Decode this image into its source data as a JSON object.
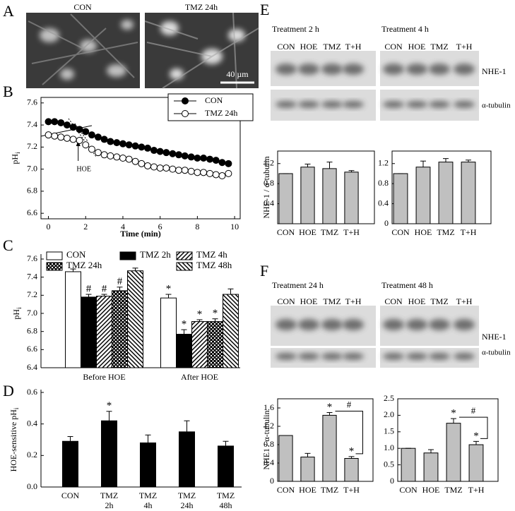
{
  "panel_labels": [
    "A",
    "B",
    "C",
    "D",
    "E",
    "F"
  ],
  "micrographs": {
    "titles": [
      "CON",
      "TMZ 24h"
    ],
    "scale_bar": "40 µm"
  },
  "blots": [
    {
      "titles": [
        "Treatment 2 h",
        "Treatment 4 h"
      ],
      "lanes": [
        [
          "CON",
          "HOE",
          "TMZ",
          "T+H"
        ],
        [
          "CON",
          "HOE",
          "TMZ",
          "T+H"
        ]
      ],
      "bands": [
        "NHE-1",
        "α-tubulin"
      ]
    },
    {
      "titles": [
        "Treatment 24 h",
        "Treatment 48 h"
      ],
      "lanes": [
        [
          "CON",
          "HOE",
          "TMZ",
          "T+H"
        ],
        [
          "CON",
          "HOE",
          "TMZ",
          "T+H"
        ]
      ],
      "bands": [
        "NHE-1",
        "α-tubulin"
      ]
    }
  ],
  "chart_data": [
    {
      "type": "scatter",
      "x_label": "Time (min)",
      "y_label": "pH",
      "y_label_sub": "i",
      "annotation": "HOE",
      "legend": "upper right",
      "xlim": [
        -0.4,
        10.3
      ],
      "xticks": [
        0,
        2,
        4,
        6,
        8,
        10
      ],
      "ylim": [
        6.55,
        7.65
      ],
      "yticks": [
        6.6,
        6.8,
        {
          "value": 7,
          "label": "7.0"
        },
        7.2,
        7.4,
        7.6
      ],
      "x": [
        0,
        0.33,
        0.67,
        1,
        1.33,
        1.67,
        2,
        2.33,
        2.67,
        3,
        3.33,
        3.67,
        4,
        4.33,
        4.67,
        5,
        5.33,
        5.67,
        6,
        6.33,
        6.67,
        7,
        7.33,
        7.67,
        8,
        8.33,
        8.67,
        9,
        9.33,
        9.67
      ],
      "series": [
        {
          "name": "CON",
          "color": "#000000",
          "marker_fill": "#000000",
          "values": [
            7.43,
            7.43,
            7.42,
            7.4,
            7.38,
            7.36,
            7.34,
            7.31,
            7.29,
            7.27,
            7.25,
            7.24,
            7.23,
            7.22,
            7.21,
            7.2,
            7.19,
            7.17,
            7.16,
            7.15,
            7.14,
            7.13,
            7.12,
            7.11,
            7.1,
            7.1,
            7.09,
            7.08,
            7.06,
            7.05
          ]
        },
        {
          "name": "TMZ 24h",
          "color": "#000000",
          "marker_fill": "#ffffff",
          "values": [
            7.31,
            7.3,
            7.29,
            7.28,
            7.27,
            7.26,
            7.22,
            7.18,
            7.15,
            7.13,
            7.12,
            7.11,
            7.1,
            7.09,
            7.07,
            7.05,
            7.03,
            7.02,
            7.01,
            7.01,
            7.0,
            6.99,
            6.99,
            6.98,
            6.97,
            6.97,
            6.96,
            6.95,
            6.94,
            6.96
          ]
        }
      ]
    },
    {
      "type": "grouped_bar",
      "y_label": "pH",
      "y_label_sub": "i",
      "categories": [
        "Before HOE",
        "After HOE"
      ],
      "ylim": [
        6.4,
        7.6
      ],
      "yticks": [
        6.4,
        6.6,
        6.8,
        {
          "value": 7,
          "label": "7.0"
        },
        7.2,
        7.4,
        7.6
      ],
      "series": [
        {
          "name": "CON",
          "color": "#ffffff",
          "pattern": "none",
          "values": [
            7.46,
            7.17
          ],
          "errors": [
            0.03,
            0.04
          ],
          "markers": [
            null,
            "*"
          ]
        },
        {
          "name": "TMZ 2h",
          "color": "#000000",
          "pattern": "solid",
          "values": [
            7.18,
            6.77
          ],
          "errors": [
            0.03,
            0.05
          ],
          "markers": [
            "#",
            "*"
          ]
        },
        {
          "name": "TMZ 4h",
          "color": "#000000",
          "pattern": "diagonal",
          "values": [
            7.19,
            6.91
          ],
          "errors": [
            0.02,
            0.02
          ],
          "markers": [
            "#",
            "*"
          ]
        },
        {
          "name": "TMZ 24h",
          "color": "#000000",
          "pattern": "crosshatch",
          "values": [
            7.25,
            6.91
          ],
          "errors": [
            0.04,
            0.03
          ],
          "markers": [
            "#",
            "*"
          ]
        },
        {
          "name": "TMZ 48h",
          "color": "#000000",
          "pattern": "diagonal-reverse",
          "values": [
            7.47,
            7.21
          ],
          "errors": [
            0.03,
            0.06
          ],
          "markers": [
            null,
            null
          ]
        }
      ]
    },
    {
      "type": "bar",
      "y_label": "HOE-sensitive pH",
      "y_label_sub": "i",
      "color": "#000000",
      "categories": [
        [
          "CON"
        ],
        [
          "TMZ",
          "2h"
        ],
        [
          "TMZ",
          "4h"
        ],
        [
          "TMZ",
          "24h"
        ],
        [
          "TMZ",
          "48h"
        ]
      ],
      "values": [
        0.29,
        0.42,
        0.28,
        0.35,
        0.26
      ],
      "errors": [
        0.03,
        0.06,
        0.05,
        0.07,
        0.03
      ],
      "markers": [
        null,
        "*",
        null,
        null,
        null
      ],
      "ylim": [
        0,
        0.6
      ],
      "yticks": [
        {
          "value": 0,
          "label": "0.0"
        },
        0.2,
        0.4,
        0.6
      ]
    },
    {
      "type": "bar",
      "y_label": "NHE-1 / α-tubulin",
      "color": "#c0c0c0",
      "categories": [
        [
          "CON"
        ],
        [
          "HOE"
        ],
        [
          "TMZ"
        ],
        [
          "T+H"
        ]
      ],
      "values": [
        1.0,
        1.13,
        1.1,
        1.03
      ],
      "errors": [
        0,
        0.06,
        0.13,
        0.03
      ],
      "ylim": [
        0,
        1.45
      ],
      "yticks": [
        0.4,
        0.8,
        1.2
      ]
    },
    {
      "type": "bar",
      "color": "#c0c0c0",
      "categories": [
        [
          "CON"
        ],
        [
          "HOE"
        ],
        [
          "TMZ"
        ],
        [
          "T+H"
        ]
      ],
      "values": [
        1.0,
        1.13,
        1.23,
        1.23
      ],
      "errors": [
        0,
        0.12,
        0.07,
        0.04
      ],
      "ylim": [
        0,
        1.45
      ],
      "yticks": [
        0,
        0.4,
        0.8,
        1.2
      ]
    },
    {
      "type": "bar",
      "y_label": "NHE1 / α-tubulin",
      "color": "#c0c0c0",
      "categories": [
        [
          "CON"
        ],
        [
          "HOE"
        ],
        [
          "TMZ"
        ],
        [
          "T+H"
        ]
      ],
      "values": [
        1.0,
        0.53,
        1.44,
        0.5
      ],
      "errors": [
        0,
        0.08,
        0.06,
        0.04
      ],
      "markers": [
        null,
        null,
        "*",
        "*"
      ],
      "bracket": {
        "from": 2,
        "to": 3,
        "label": "#"
      },
      "ylim": [
        0,
        1.8
      ],
      "yticks": [
        0,
        0.4,
        0.8,
        1.2,
        1.6
      ]
    },
    {
      "type": "bar",
      "color": "#c0c0c0",
      "categories": [
        [
          "CON"
        ],
        [
          "HOE"
        ],
        [
          "TMZ"
        ],
        [
          "T+H"
        ]
      ],
      "values": [
        1.0,
        0.86,
        1.76,
        1.11
      ],
      "errors": [
        0,
        0.1,
        0.14,
        0.1
      ],
      "markers": [
        null,
        null,
        "*",
        "*"
      ],
      "bracket": {
        "from": 2,
        "to": 3,
        "label": "#"
      },
      "ylim": [
        0,
        2.5
      ],
      "yticks": [
        0,
        0.5,
        {
          "value": 1,
          "label": "1.0"
        },
        1.5,
        {
          "value": 2,
          "label": "2.0"
        },
        2.5
      ]
    }
  ]
}
